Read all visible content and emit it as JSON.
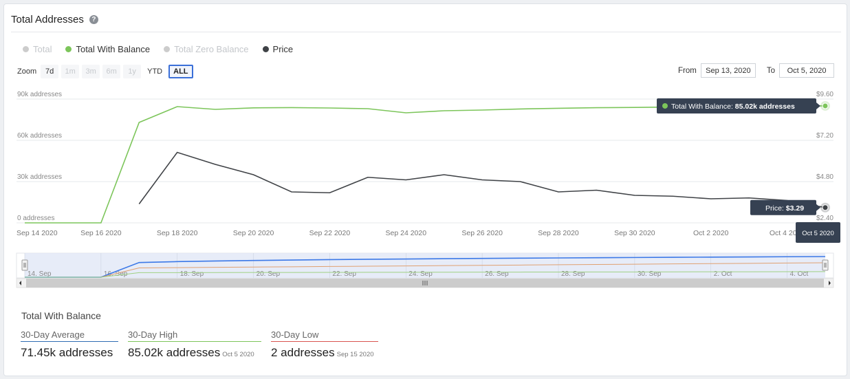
{
  "header": {
    "title": "Total Addresses",
    "help_icon": "question-circle-icon"
  },
  "legend": [
    {
      "label": "Total",
      "color": "#cccccc",
      "active": false
    },
    {
      "label": "Total With Balance",
      "color": "#7cc55a",
      "active": true
    },
    {
      "label": "Total Zero Balance",
      "color": "#cccccc",
      "active": false
    },
    {
      "label": "Price",
      "color": "#3f4246",
      "active": true
    }
  ],
  "zoom": {
    "label": "Zoom",
    "buttons": [
      {
        "label": "7d",
        "state": "normal"
      },
      {
        "label": "1m",
        "state": "disabled"
      },
      {
        "label": "3m",
        "state": "disabled"
      },
      {
        "label": "6m",
        "state": "disabled"
      },
      {
        "label": "1y",
        "state": "disabled"
      },
      {
        "label": "YTD",
        "state": "plain"
      },
      {
        "label": "ALL",
        "state": "active"
      }
    ]
  },
  "range": {
    "from_label": "From",
    "from_value": "Sep 13, 2020",
    "to_label": "To",
    "to_value": "Oct 5, 2020"
  },
  "chart_data": {
    "type": "line",
    "x": [
      "2020-09-14",
      "2020-09-15",
      "2020-09-16",
      "2020-09-17",
      "2020-09-18",
      "2020-09-19",
      "2020-09-20",
      "2020-09-21",
      "2020-09-22",
      "2020-09-23",
      "2020-09-24",
      "2020-09-25",
      "2020-09-26",
      "2020-09-27",
      "2020-09-28",
      "2020-09-29",
      "2020-09-30",
      "2020-10-01",
      "2020-10-02",
      "2020-10-03",
      "2020-10-04",
      "2020-10-05"
    ],
    "x_tick_labels": [
      "Sep 14 2020",
      "Sep 16 2020",
      "Sep 18 2020",
      "Sep 20 2020",
      "Sep 22 2020",
      "Sep 24 2020",
      "Sep 26 2020",
      "Sep 28 2020",
      "Sep 30 2020",
      "Oct 2 2020",
      "Oct 4 2020"
    ],
    "y_left": {
      "ticks": [
        "0 addresses",
        "30k addresses",
        "60k addresses",
        "90k addresses"
      ],
      "range": [
        0,
        90000
      ]
    },
    "y_right": {
      "ticks": [
        "$2.40",
        "$4.80",
        "$7.20",
        "$9.60"
      ],
      "range": [
        2.4,
        9.6
      ]
    },
    "series": [
      {
        "name": "Total With Balance",
        "axis": "left",
        "color": "#7cc55a",
        "values": [
          2,
          2,
          2,
          73000,
          84500,
          82500,
          83600,
          83800,
          83500,
          83000,
          80000,
          81500,
          82000,
          82800,
          83300,
          83700,
          83900,
          84200,
          84500,
          84700,
          84900,
          85020
        ]
      },
      {
        "name": "Price",
        "axis": "right",
        "color": "#3f4246",
        "values": [
          null,
          null,
          null,
          3.5,
          6.5,
          5.8,
          5.2,
          4.2,
          4.15,
          5.05,
          4.9,
          5.2,
          4.9,
          4.8,
          4.2,
          4.3,
          4.0,
          3.95,
          3.8,
          3.85,
          3.7,
          3.29
        ]
      }
    ],
    "tooltips": [
      {
        "series": "Total With Balance",
        "text_label": "Total With Balance: ",
        "text_value": "85.02k addresses"
      },
      {
        "series": "Price",
        "text_label": "Price: ",
        "text_value": "$3.29"
      }
    ],
    "crosshair_label": "Oct 5 2020",
    "navigator": {
      "tick_labels": [
        "14. Sep",
        "16. Sep",
        "18. Sep",
        "20. Sep",
        "22. Sep",
        "24. Sep",
        "26. Sep",
        "28. Sep",
        "30. Sep",
        "2. Oct",
        "4. Oct"
      ],
      "series_colors": [
        "#3b78e7",
        "#e0a070",
        "#9fd082"
      ]
    },
    "grid": true
  },
  "stats": {
    "title": "Total With Balance",
    "items": [
      {
        "label": "30-Day Average",
        "color": "#2f6db3",
        "value": "71.45k addresses",
        "date": ""
      },
      {
        "label": "30-Day High",
        "color": "#7cc55a",
        "value": "85.02k addresses",
        "date": "Oct 5 2020"
      },
      {
        "label": "30-Day Low",
        "color": "#d9534f",
        "value": "2 addresses",
        "date": "Sep 15 2020"
      }
    ]
  }
}
